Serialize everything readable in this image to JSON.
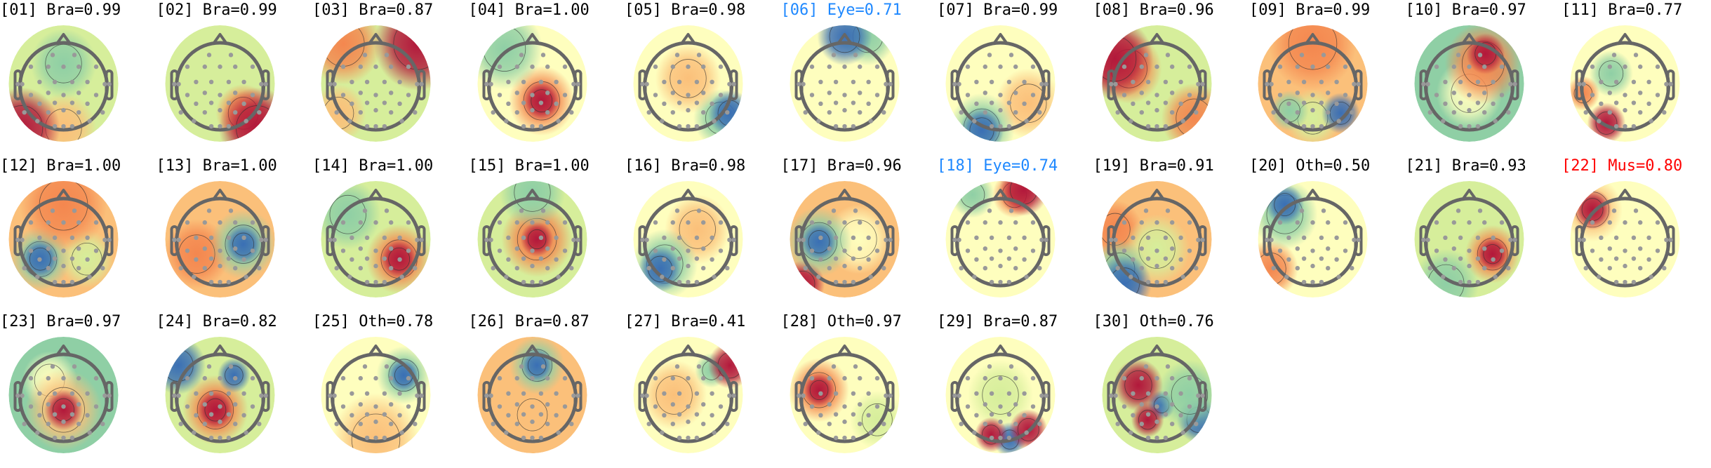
{
  "chart_data": {
    "type": "topomap",
    "components": [
      {
        "title": "[01] Bra=0.99",
        "label": "Bra",
        "score": 0.99,
        "color": "#000000"
      },
      {
        "title": "[02] Bra=0.99",
        "label": "Bra",
        "score": 0.99,
        "color": "#000000"
      },
      {
        "title": "[03] Bra=0.87",
        "label": "Bra",
        "score": 0.87,
        "color": "#000000"
      },
      {
        "title": "[04] Bra=1.00",
        "label": "Bra",
        "score": 1.0,
        "color": "#000000"
      },
      {
        "title": "[05] Bra=0.98",
        "label": "Bra",
        "score": 0.98,
        "color": "#000000"
      },
      {
        "title": "[06] Eye=0.71",
        "label": "Eye",
        "score": 0.71,
        "color": "#1e88ff"
      },
      {
        "title": "[07] Bra=0.99",
        "label": "Bra",
        "score": 0.99,
        "color": "#000000"
      },
      {
        "title": "[08] Bra=0.96",
        "label": "Bra",
        "score": 0.96,
        "color": "#000000"
      },
      {
        "title": "[09] Bra=0.99",
        "label": "Bra",
        "score": 0.99,
        "color": "#000000"
      },
      {
        "title": "[10] Bra=0.97",
        "label": "Bra",
        "score": 0.97,
        "color": "#000000"
      },
      {
        "title": "[11] Bra=0.77",
        "label": "Bra",
        "score": 0.77,
        "color": "#000000"
      },
      {
        "title": "[12] Bra=1.00",
        "label": "Bra",
        "score": 1.0,
        "color": "#000000"
      },
      {
        "title": "[13] Bra=1.00",
        "label": "Bra",
        "score": 1.0,
        "color": "#000000"
      },
      {
        "title": "[14] Bra=1.00",
        "label": "Bra",
        "score": 1.0,
        "color": "#000000"
      },
      {
        "title": "[15] Bra=1.00",
        "label": "Bra",
        "score": 1.0,
        "color": "#000000"
      },
      {
        "title": "[16] Bra=0.98",
        "label": "Bra",
        "score": 0.98,
        "color": "#000000"
      },
      {
        "title": "[17] Bra=0.96",
        "label": "Bra",
        "score": 0.96,
        "color": "#000000"
      },
      {
        "title": "[18] Eye=0.74",
        "label": "Eye",
        "score": 0.74,
        "color": "#1e88ff"
      },
      {
        "title": "[19] Bra=0.91",
        "label": "Bra",
        "score": 0.91,
        "color": "#000000"
      },
      {
        "title": "[20] Oth=0.50",
        "label": "Oth",
        "score": 0.5,
        "color": "#000000"
      },
      {
        "title": "[21] Bra=0.93",
        "label": "Bra",
        "score": 0.93,
        "color": "#000000"
      },
      {
        "title": "[22] Mus=0.80",
        "label": "Mus",
        "score": 0.8,
        "color": "#ff0000"
      },
      {
        "title": "[23] Bra=0.97",
        "label": "Bra",
        "score": 0.97,
        "color": "#000000"
      },
      {
        "title": "[24] Bra=0.82",
        "label": "Bra",
        "score": 0.82,
        "color": "#000000"
      },
      {
        "title": "[25] Oth=0.78",
        "label": "Oth",
        "score": 0.78,
        "color": "#000000"
      },
      {
        "title": "[26] Bra=0.87",
        "label": "Bra",
        "score": 0.87,
        "color": "#000000"
      },
      {
        "title": "[27] Bra=0.41",
        "label": "Bra",
        "score": 0.41,
        "color": "#000000"
      },
      {
        "title": "[28] Oth=0.97",
        "label": "Oth",
        "score": 0.97,
        "color": "#000000"
      },
      {
        "title": "[29] Bra=0.87",
        "label": "Bra",
        "score": 0.87,
        "color": "#000000"
      },
      {
        "title": "[30] Oth=0.76",
        "label": "Oth",
        "score": 0.76,
        "color": "#000000"
      }
    ],
    "colormap": [
      "#3b62b0",
      "#66c2a5",
      "#e6f598",
      "#ffffbf",
      "#fdae61",
      "#f46d43",
      "#b2183b"
    ],
    "grid": false,
    "legend": "none"
  }
}
